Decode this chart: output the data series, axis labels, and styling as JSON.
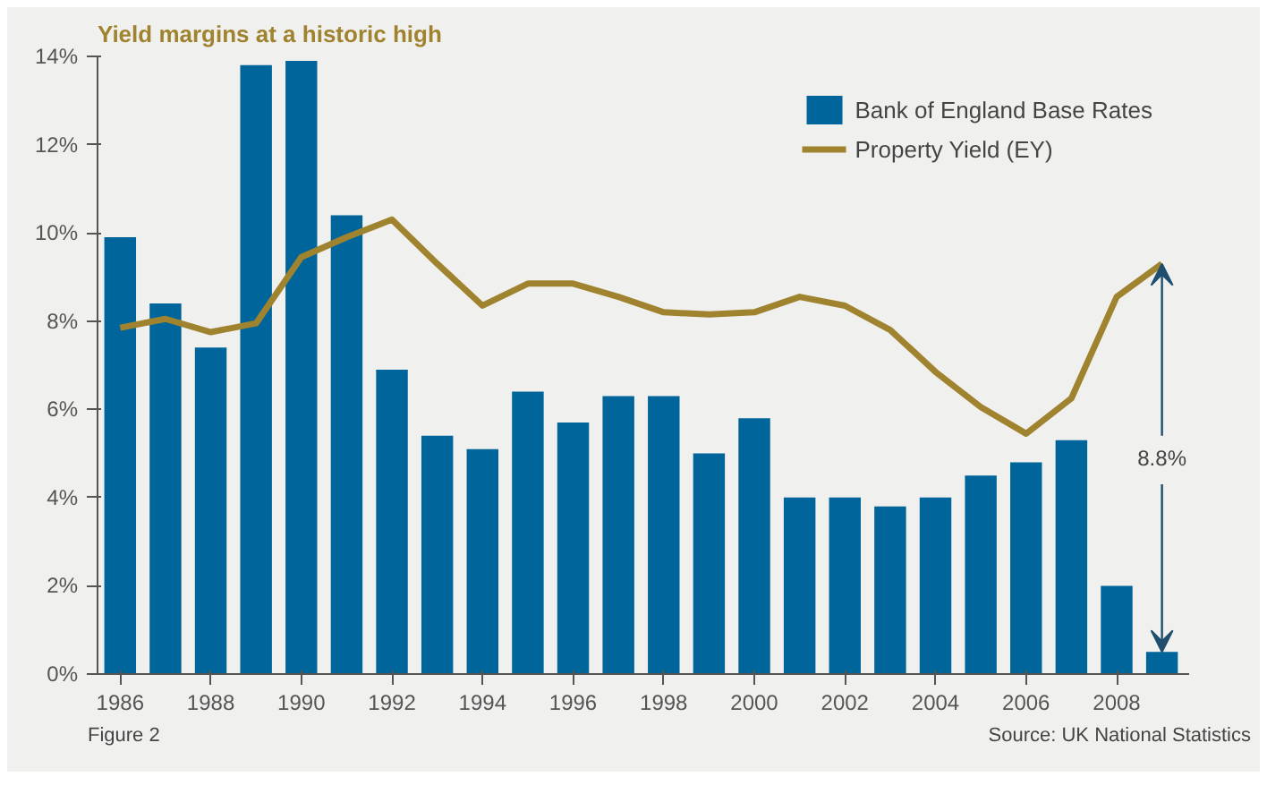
{
  "chart_data": {
    "type": "bar",
    "title": "Yield margins at a historic high",
    "x": [
      1986,
      1987,
      1988,
      1989,
      1990,
      1991,
      1992,
      1993,
      1994,
      1995,
      1996,
      1997,
      1998,
      1999,
      2000,
      2001,
      2002,
      2003,
      2004,
      2005,
      2006,
      2007,
      2008,
      2009
    ],
    "series": [
      {
        "name": "Bank of England Base Rates",
        "color": "#00659a",
        "values": [
          9.9,
          8.4,
          7.4,
          13.8,
          13.9,
          10.4,
          6.9,
          5.4,
          5.1,
          6.4,
          5.7,
          6.3,
          6.3,
          5.0,
          5.8,
          4.0,
          4.0,
          3.8,
          4.0,
          4.5,
          4.8,
          5.3,
          2.0,
          0.5
        ]
      },
      {
        "name": "Property Yield (EY)",
        "type": "line",
        "color": "#a0832f",
        "values": [
          7.85,
          8.05,
          7.75,
          7.95,
          9.45,
          9.9,
          10.3,
          9.3,
          8.35,
          8.85,
          8.85,
          8.55,
          8.2,
          8.15,
          8.2,
          8.55,
          8.35,
          7.8,
          6.85,
          6.05,
          5.45,
          6.25,
          8.55,
          9.3
        ]
      }
    ],
    "xlim": [
      1985.5,
      2009.6
    ],
    "xticks": [
      1986,
      1988,
      1990,
      1992,
      1994,
      1996,
      1998,
      2000,
      2002,
      2004,
      2006,
      2008
    ],
    "ylim": [
      0,
      14
    ],
    "yticks": [
      {
        "value": 0,
        "label": "0%"
      },
      {
        "value": 2,
        "label": "2%"
      },
      {
        "value": 4,
        "label": "4%"
      },
      {
        "value": 6,
        "label": "6%"
      },
      {
        "value": 8,
        "label": "8%"
      },
      {
        "value": 10,
        "label": "10%"
      },
      {
        "value": 12,
        "label": "12%"
      },
      {
        "value": 14,
        "label": "14%"
      }
    ],
    "grid": false,
    "legend": "top right",
    "annotations": [
      {
        "text": "8.8%",
        "x": 2009,
        "y": 4.9
      },
      "Figure 2",
      "Source: UK National Statistics"
    ]
  }
}
